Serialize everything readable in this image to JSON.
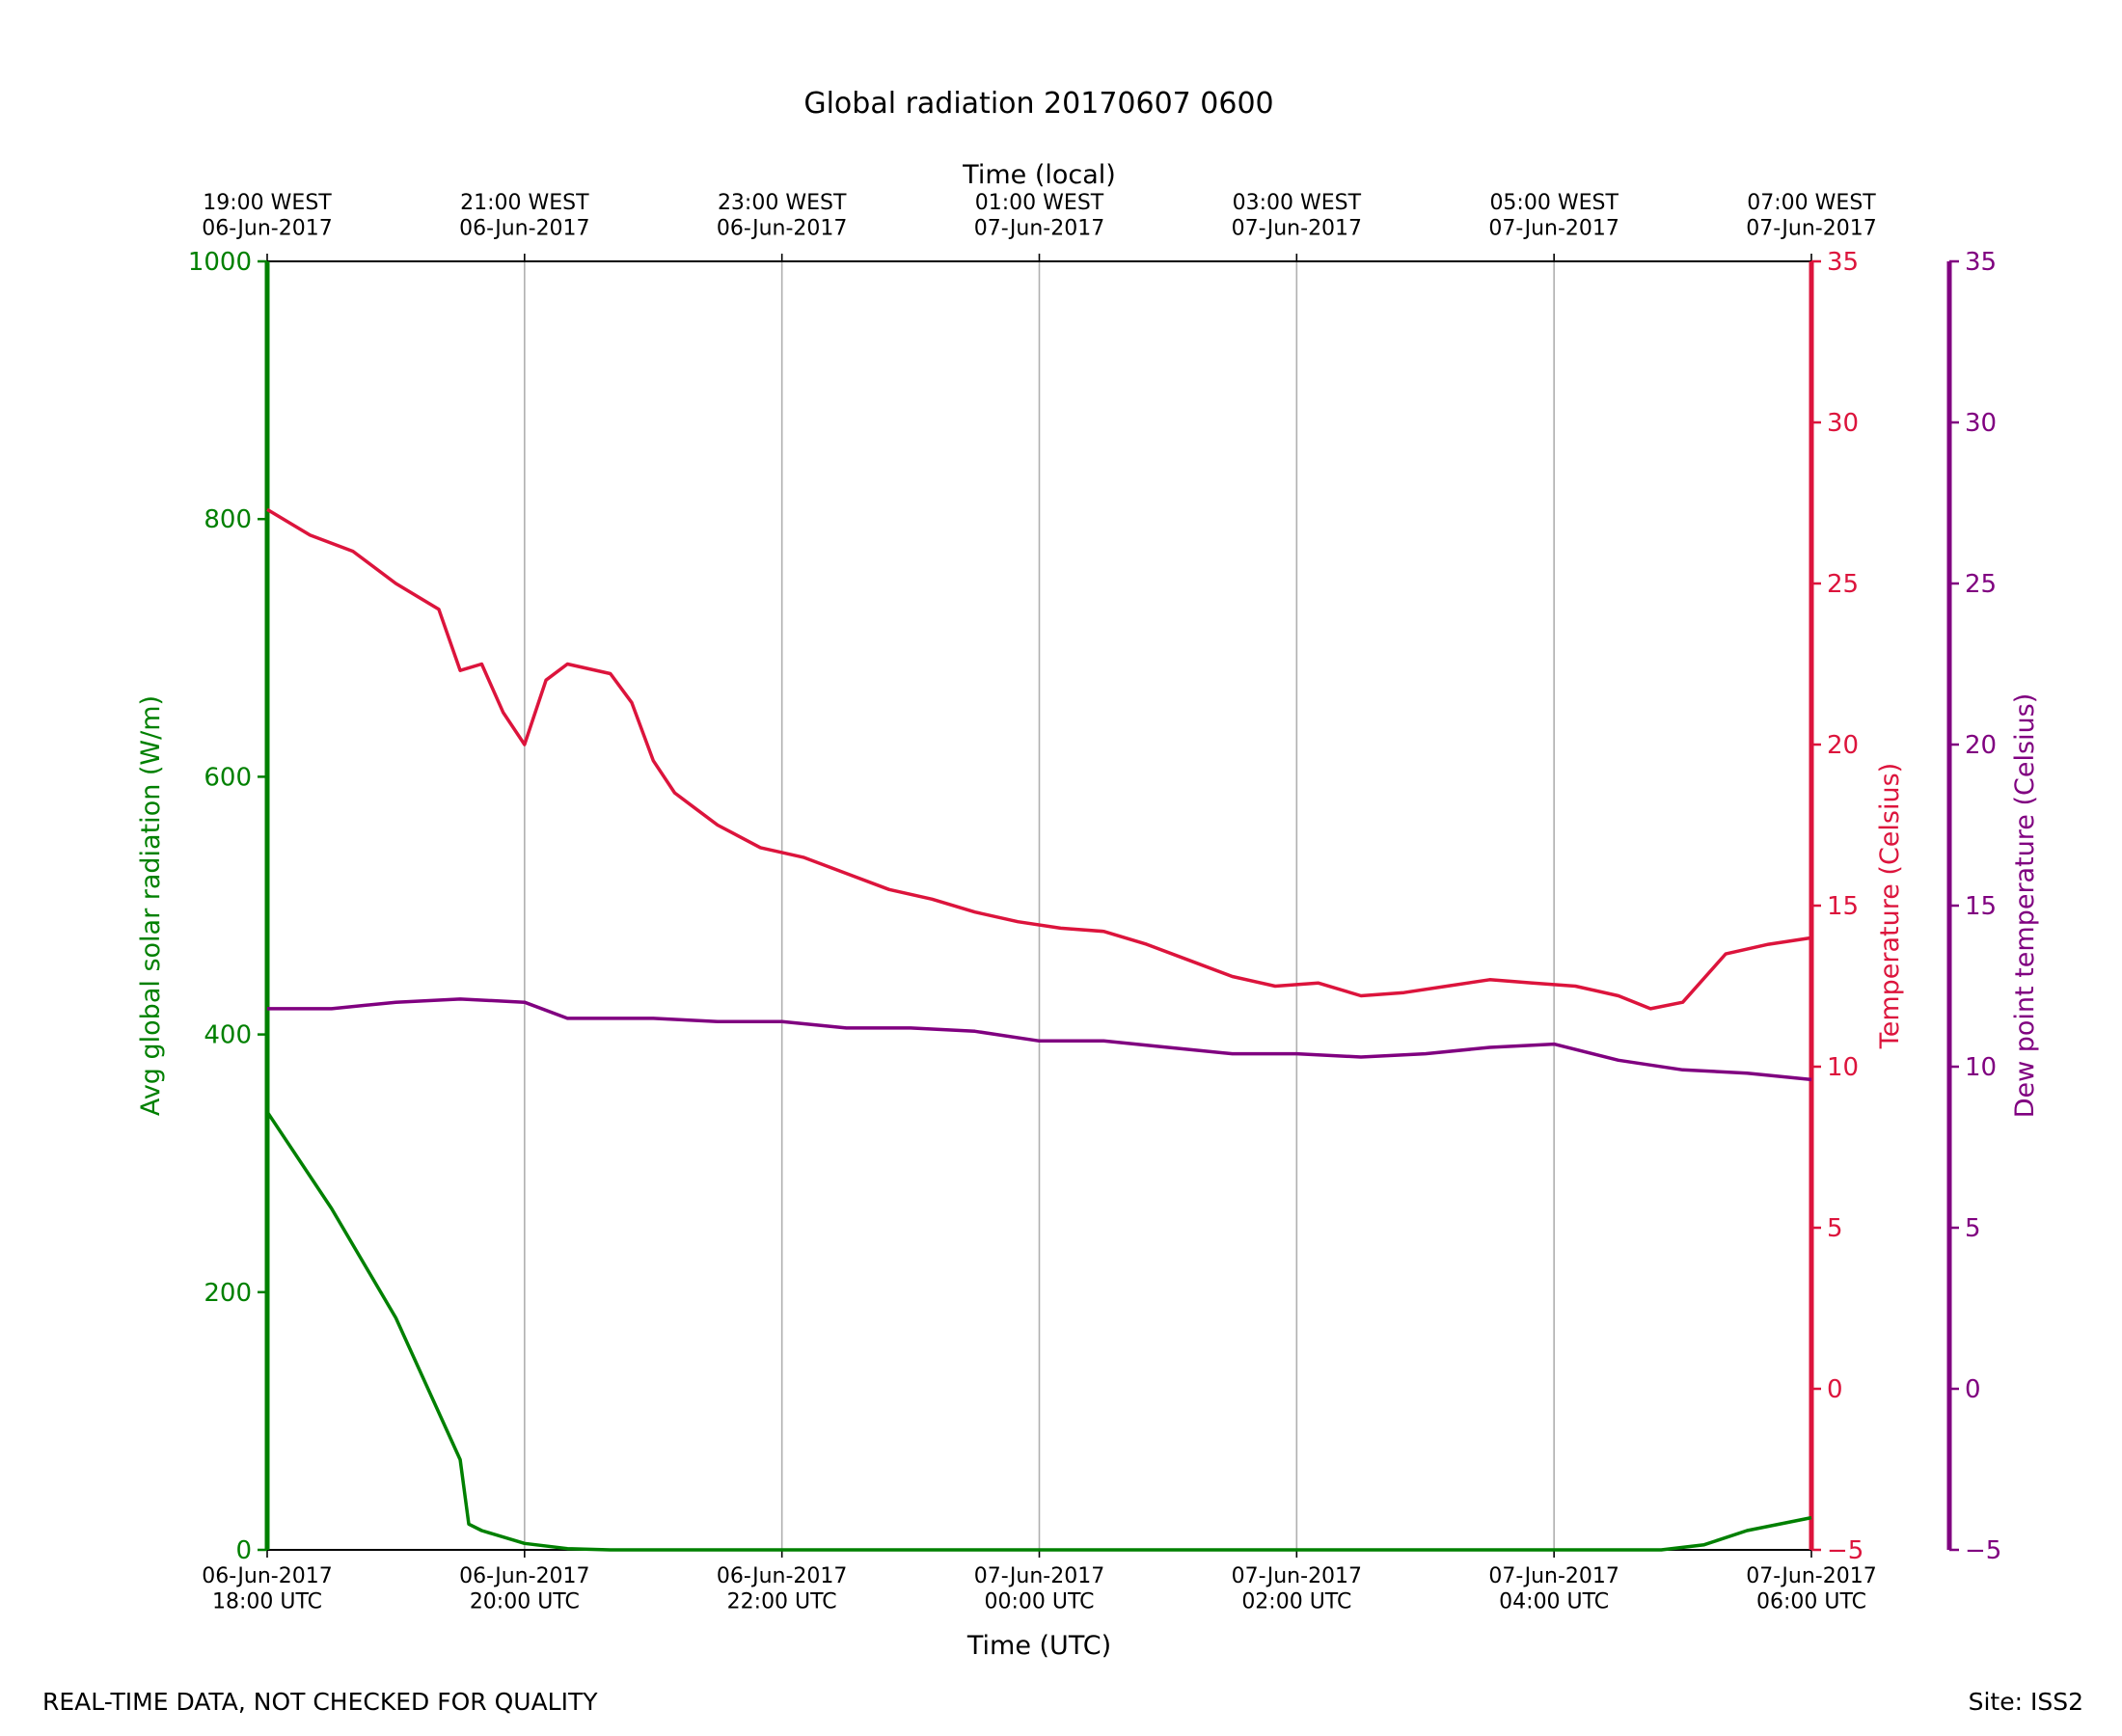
{
  "chart_data": {
    "type": "line",
    "title": "Global radiation 20170607 0600",
    "xlabel": "Time (UTC)",
    "x2label": "Time (local)",
    "x_ticks": [
      "06-Jun-2017\n18:00 UTC",
      "06-Jun-2017\n20:00 UTC",
      "06-Jun-2017\n22:00 UTC",
      "07-Jun-2017\n00:00 UTC",
      "07-Jun-2017\n02:00 UTC",
      "07-Jun-2017\n04:00 UTC",
      "07-Jun-2017\n06:00 UTC"
    ],
    "x2_ticks": [
      "19:00 WEST\n06-Jun-2017",
      "21:00 WEST\n06-Jun-2017",
      "23:00 WEST\n06-Jun-2017",
      "01:00 WEST\n07-Jun-2017",
      "03:00 WEST\n07-Jun-2017",
      "05:00 WEST\n07-Jun-2017",
      "07:00 WEST\n07-Jun-2017"
    ],
    "xlim": [
      "2017-06-06 18:00",
      "2017-06-07 06:00"
    ],
    "grid": "vertical",
    "axes": [
      {
        "id": "radiation",
        "label": "Avg global solar radiation (W/m)",
        "side": "left",
        "ylim": [
          0,
          1000
        ],
        "ticks": [
          0,
          200,
          400,
          600,
          800,
          1000
        ],
        "color": "#008000"
      },
      {
        "id": "temperature",
        "label": "Temperature (Celsius)",
        "side": "right",
        "ylim": [
          -5,
          35
        ],
        "ticks": [
          -5,
          0,
          5,
          10,
          15,
          20,
          25,
          30,
          35
        ],
        "color": "#dc143c"
      },
      {
        "id": "dewpoint",
        "label": "Dew point temperature (Celsius)",
        "side": "right-outer",
        "ylim": [
          -5,
          35
        ],
        "ticks": [
          -5,
          0,
          5,
          10,
          15,
          20,
          25,
          30,
          35
        ],
        "color": "#800080"
      }
    ],
    "series": [
      {
        "axis": "radiation",
        "color": "#008000",
        "x": [
          "2017-06-06 18:00",
          "2017-06-06 18:30",
          "2017-06-06 19:00",
          "2017-06-06 19:30",
          "2017-06-06 19:34",
          "2017-06-06 19:40",
          "2017-06-06 20:00",
          "2017-06-06 20:20",
          "2017-06-06 20:40",
          "2017-06-07 04:50",
          "2017-06-07 05:10",
          "2017-06-07 05:30",
          "2017-06-07 06:00"
        ],
        "values": [
          340,
          265,
          180,
          70,
          20,
          15,
          5,
          1,
          0,
          0,
          4,
          15,
          25
        ]
      },
      {
        "axis": "temperature",
        "color": "#dc143c",
        "x": [
          "2017-06-06 18:00",
          "2017-06-06 18:20",
          "2017-06-06 18:40",
          "2017-06-06 19:00",
          "2017-06-06 19:20",
          "2017-06-06 19:30",
          "2017-06-06 19:40",
          "2017-06-06 19:50",
          "2017-06-06 20:00",
          "2017-06-06 20:10",
          "2017-06-06 20:20",
          "2017-06-06 20:40",
          "2017-06-06 20:50",
          "2017-06-06 21:00",
          "2017-06-06 21:10",
          "2017-06-06 21:20",
          "2017-06-06 21:30",
          "2017-06-06 21:50",
          "2017-06-06 22:10",
          "2017-06-06 22:30",
          "2017-06-06 22:50",
          "2017-06-06 23:10",
          "2017-06-06 23:30",
          "2017-06-06 23:50",
          "2017-06-07 00:10",
          "2017-06-07 00:30",
          "2017-06-07 00:50",
          "2017-06-07 01:10",
          "2017-06-07 01:30",
          "2017-06-07 01:50",
          "2017-06-07 02:10",
          "2017-06-07 02:30",
          "2017-06-07 02:50",
          "2017-06-07 03:10",
          "2017-06-07 03:30",
          "2017-06-07 03:50",
          "2017-06-07 04:10",
          "2017-06-07 04:30",
          "2017-06-07 04:45",
          "2017-06-07 05:00",
          "2017-06-07 05:20",
          "2017-06-07 05:40",
          "2017-06-07 06:00"
        ],
        "values": [
          27.3,
          26.5,
          26.0,
          25.0,
          24.2,
          22.3,
          22.5,
          21.0,
          20.0,
          22.0,
          22.5,
          22.2,
          21.3,
          19.5,
          18.5,
          18.0,
          17.5,
          16.8,
          16.5,
          16.0,
          15.5,
          15.2,
          14.8,
          14.5,
          14.3,
          14.2,
          13.8,
          13.3,
          12.8,
          12.5,
          12.6,
          12.2,
          12.3,
          12.5,
          12.7,
          12.6,
          12.5,
          12.2,
          11.8,
          12.0,
          13.5,
          13.8,
          14.0
        ]
      },
      {
        "axis": "dewpoint",
        "color": "#800080",
        "x": [
          "2017-06-06 18:00",
          "2017-06-06 18:30",
          "2017-06-06 19:00",
          "2017-06-06 19:30",
          "2017-06-06 20:00",
          "2017-06-06 20:20",
          "2017-06-06 21:00",
          "2017-06-06 21:30",
          "2017-06-06 22:00",
          "2017-06-06 22:30",
          "2017-06-06 23:00",
          "2017-06-06 23:30",
          "2017-06-07 00:00",
          "2017-06-07 00:30",
          "2017-06-07 01:00",
          "2017-06-07 01:30",
          "2017-06-07 02:00",
          "2017-06-07 02:30",
          "2017-06-07 03:00",
          "2017-06-07 03:30",
          "2017-06-07 04:00",
          "2017-06-07 04:30",
          "2017-06-07 05:00",
          "2017-06-07 05:30",
          "2017-06-07 06:00"
        ],
        "values": [
          11.8,
          11.8,
          12.0,
          12.1,
          12.0,
          11.5,
          11.5,
          11.4,
          11.4,
          11.2,
          11.2,
          11.1,
          10.8,
          10.8,
          10.6,
          10.4,
          10.4,
          10.3,
          10.4,
          10.6,
          10.7,
          10.2,
          9.9,
          9.8,
          9.6
        ]
      }
    ]
  },
  "footer": {
    "left_note": "REAL-TIME DATA, NOT CHECKED FOR QUALITY",
    "site": "Site: ISS2"
  }
}
